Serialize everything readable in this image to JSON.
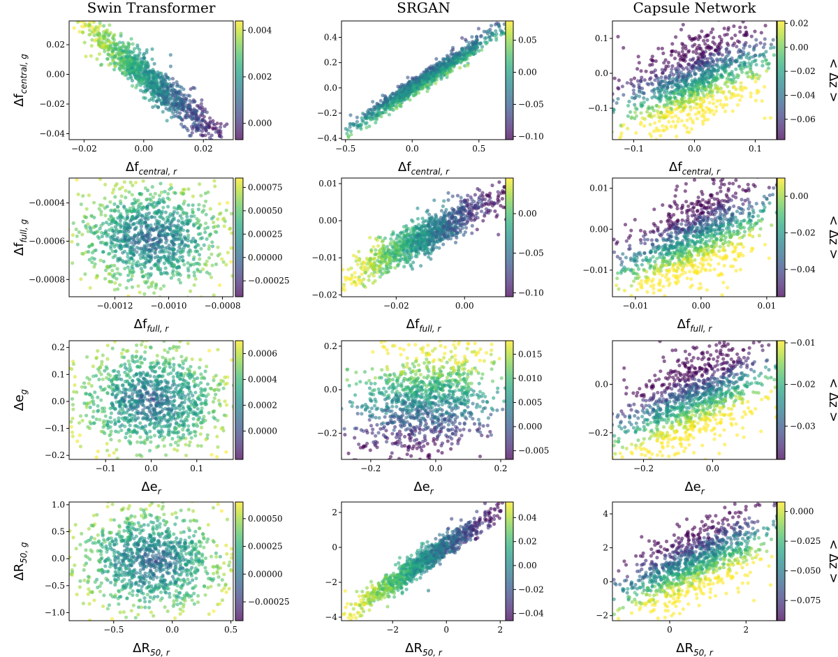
{
  "chart_data": [
    {
      "id": "swin-central",
      "type": "scatter",
      "title": "Swin Transformer",
      "xlabel": {
        "main": "Δf",
        "sub": "central, r"
      },
      "ylabel": {
        "main": "Δf",
        "sub": "central, g"
      },
      "xlim": [
        -0.025,
        0.03
      ],
      "ylim": [
        -0.044,
        0.036
      ],
      "xticks": [
        {
          "v": -0.02,
          "t": "−0.02"
        },
        {
          "v": 0,
          "t": "0.00"
        },
        {
          "v": 0.02,
          "t": "0.02"
        }
      ],
      "yticks": [
        {
          "v": -0.04,
          "t": "−0.04"
        },
        {
          "v": -0.02,
          "t": "−0.02"
        },
        {
          "v": 0,
          "t": "0.00"
        },
        {
          "v": 0.02,
          "t": "0.02"
        }
      ],
      "clim": [
        -0.0007,
        0.0044
      ],
      "cticks": [
        {
          "v": 0,
          "t": "0.000"
        },
        {
          "v": 0.002,
          "t": "0.002"
        },
        {
          "v": 0.004,
          "t": "0.004"
        }
      ],
      "zlabel": "",
      "pattern": {
        "slope": -1.15,
        "scatter": 0.15,
        "cshape": "linear-x"
      }
    },
    {
      "id": "srgan-central",
      "type": "scatter",
      "title": "SRGAN",
      "xlabel": {
        "main": "Δf",
        "sub": "central, r"
      },
      "ylabel": {
        "main": "",
        "sub": ""
      },
      "xlim": [
        -0.53,
        0.7
      ],
      "ylim": [
        -0.41,
        0.53
      ],
      "xticks": [
        {
          "v": -0.5,
          "t": "−0.5"
        },
        {
          "v": 0,
          "t": "0.0"
        },
        {
          "v": 0.5,
          "t": "0.5"
        }
      ],
      "yticks": [
        {
          "v": -0.4,
          "t": "−0.4"
        },
        {
          "v": -0.2,
          "t": "−0.2"
        },
        {
          "v": 0,
          "t": "0.0"
        },
        {
          "v": 0.2,
          "t": "0.2"
        },
        {
          "v": 0.4,
          "t": "0.4"
        }
      ],
      "clim": [
        -0.105,
        0.08
      ],
      "cticks": [
        {
          "v": -0.1,
          "t": "−0.10"
        },
        {
          "v": -0.05,
          "t": "−0.05"
        },
        {
          "v": 0,
          "t": "0.00"
        },
        {
          "v": 0.05,
          "t": "0.05"
        }
      ],
      "zlabel": "",
      "pattern": {
        "slope": 0.9,
        "scatter": 0.07,
        "cshape": "perp"
      }
    },
    {
      "id": "capsule-central",
      "type": "scatter",
      "title": "Capsule Network",
      "xlabel": {
        "main": "Δf",
        "sub": "central, r"
      },
      "ylabel": {
        "main": "",
        "sub": ""
      },
      "xlim": [
        -0.135,
        0.135
      ],
      "ylim": [
        -0.19,
        0.15
      ],
      "xticks": [
        {
          "v": -0.1,
          "t": "−0.1"
        },
        {
          "v": 0,
          "t": "0.0"
        },
        {
          "v": 0.1,
          "t": "0.1"
        }
      ],
      "yticks": [
        {
          "v": -0.1,
          "t": "−0.1"
        },
        {
          "v": 0,
          "t": "0.0"
        },
        {
          "v": 0.1,
          "t": "0.1"
        }
      ],
      "clim": [
        -0.077,
        0.022
      ],
      "cticks": [
        {
          "v": -0.06,
          "t": "−0.06"
        },
        {
          "v": -0.04,
          "t": "−0.04"
        },
        {
          "v": -0.02,
          "t": "−0.02"
        },
        {
          "v": 0,
          "t": "0.00"
        },
        {
          "v": 0.02,
          "t": "0.02"
        }
      ],
      "zlabel": "< Δz >",
      "pattern": {
        "slope": 0.5,
        "scatter": 0.35,
        "cshape": "perp"
      }
    },
    {
      "id": "swin-full",
      "type": "scatter",
      "title": "",
      "xlabel": {
        "main": "Δf",
        "sub": "full, r"
      },
      "ylabel": {
        "main": "Δf",
        "sub": "full, g"
      },
      "xlim": [
        -0.00137,
        -0.00076
      ],
      "ylim": [
        -0.00089,
        -0.00027
      ],
      "xticks": [
        {
          "v": -0.0012,
          "t": "−0.0012"
        },
        {
          "v": -0.001,
          "t": "−0.0010"
        },
        {
          "v": -0.0008,
          "t": "−0.0008"
        }
      ],
      "yticks": [
        {
          "v": -0.0008,
          "t": "−0.0008"
        },
        {
          "v": -0.0006,
          "t": "−0.0006"
        },
        {
          "v": -0.0004,
          "t": "−0.0004"
        }
      ],
      "clim": [
        -0.00042,
        0.00085
      ],
      "cticks": [
        {
          "v": -0.00025,
          "t": "−0.00025"
        },
        {
          "v": 0,
          "t": "0.00000"
        },
        {
          "v": 0.00025,
          "t": "0.00025"
        },
        {
          "v": 0.0005,
          "t": "0.00050"
        },
        {
          "v": 0.00075,
          "t": "0.00075"
        }
      ],
      "zlabel": "",
      "pattern": {
        "slope": 0,
        "scatter": 0.45,
        "cshape": "radial"
      }
    },
    {
      "id": "srgan-full",
      "type": "scatter",
      "title": "",
      "xlabel": {
        "main": "Δf",
        "sub": "full, r"
      },
      "ylabel": {
        "main": "",
        "sub": ""
      },
      "xlim": [
        -0.036,
        0.012
      ],
      "ylim": [
        -0.0205,
        0.0115
      ],
      "xticks": [
        {
          "v": -0.02,
          "t": "−0.02"
        },
        {
          "v": 0,
          "t": "0.00"
        }
      ],
      "yticks": [
        {
          "v": -0.02,
          "t": "−0.02"
        },
        {
          "v": -0.01,
          "t": "−0.01"
        },
        {
          "v": 0,
          "t": "0.00"
        },
        {
          "v": 0.01,
          "t": "0.01"
        }
      ],
      "clim": [
        -0.105,
        0.045
      ],
      "cticks": [
        {
          "v": -0.1,
          "t": "−0.10"
        },
        {
          "v": -0.05,
          "t": "−0.05"
        },
        {
          "v": 0,
          "t": "0.00"
        }
      ],
      "zlabel": "",
      "pattern": {
        "slope": 0.75,
        "scatter": 0.15,
        "cshape": "linear-x"
      }
    },
    {
      "id": "capsule-full",
      "type": "scatter",
      "title": "",
      "xlabel": {
        "main": "Δf",
        "sub": "full, r"
      },
      "ylabel": {
        "main": "",
        "sub": ""
      },
      "xlim": [
        -0.0135,
        0.0115
      ],
      "ylim": [
        -0.0165,
        0.0125
      ],
      "xticks": [
        {
          "v": -0.01,
          "t": "−0.01"
        },
        {
          "v": 0,
          "t": "0.00"
        },
        {
          "v": 0.01,
          "t": "0.01"
        }
      ],
      "yticks": [
        {
          "v": -0.01,
          "t": "−0.01"
        },
        {
          "v": 0,
          "t": "0.00"
        },
        {
          "v": 0.01,
          "t": "0.01"
        }
      ],
      "clim": [
        -0.055,
        0.01
      ],
      "cticks": [
        {
          "v": -0.04,
          "t": "−0.04"
        },
        {
          "v": -0.02,
          "t": "−0.02"
        },
        {
          "v": 0,
          "t": "0.00"
        }
      ],
      "zlabel": "< Δz >",
      "pattern": {
        "slope": 0.55,
        "scatter": 0.35,
        "cshape": "perp"
      }
    },
    {
      "id": "swin-e",
      "type": "scatter",
      "title": "",
      "xlabel": {
        "main": "Δe",
        "sub": "r"
      },
      "ylabel": {
        "main": "Δe",
        "sub": "g"
      },
      "xlim": [
        -0.18,
        0.18
      ],
      "ylim": [
        -0.215,
        0.225
      ],
      "xticks": [
        {
          "v": -0.1,
          "t": "−0.1"
        },
        {
          "v": 0,
          "t": "0.0"
        },
        {
          "v": 0.1,
          "t": "0.1"
        }
      ],
      "yticks": [
        {
          "v": -0.2,
          "t": "−0.2"
        },
        {
          "v": -0.1,
          "t": "−0.1"
        },
        {
          "v": 0,
          "t": "0.0"
        },
        {
          "v": 0.1,
          "t": "0.1"
        },
        {
          "v": 0.2,
          "t": "0.2"
        }
      ],
      "clim": [
        -0.00022,
        0.0007
      ],
      "cticks": [
        {
          "v": 0,
          "t": "0.0000"
        },
        {
          "v": 0.0002,
          "t": "0.0002"
        },
        {
          "v": 0.0004,
          "t": "0.0004"
        },
        {
          "v": 0.0006,
          "t": "0.0006"
        }
      ],
      "zlabel": "",
      "pattern": {
        "slope": 0,
        "scatter": 0.5,
        "cshape": "radial"
      }
    },
    {
      "id": "srgan-e",
      "type": "scatter",
      "title": "",
      "xlabel": {
        "main": "Δe",
        "sub": "r"
      },
      "ylabel": {
        "main": "",
        "sub": ""
      },
      "xlim": [
        -0.29,
        0.215
      ],
      "ylim": [
        -0.32,
        0.225
      ],
      "xticks": [
        {
          "v": -0.2,
          "t": "−0.2"
        },
        {
          "v": 0,
          "t": "0.0"
        },
        {
          "v": 0.2,
          "t": "0.2"
        }
      ],
      "yticks": [
        {
          "v": -0.2,
          "t": "−0.2"
        },
        {
          "v": 0,
          "t": "0.0"
        },
        {
          "v": 0.2,
          "t": "0.2"
        }
      ],
      "clim": [
        -0.0068,
        0.0178
      ],
      "cticks": [
        {
          "v": -0.005,
          "t": "−0.005"
        },
        {
          "v": 0,
          "t": "0.000"
        },
        {
          "v": 0.005,
          "t": "0.005"
        },
        {
          "v": 0.01,
          "t": "0.010"
        },
        {
          "v": 0.015,
          "t": "0.015"
        }
      ],
      "zlabel": "",
      "pattern": {
        "slope": 0.25,
        "scatter": 0.45,
        "cshape": "linear-y"
      }
    },
    {
      "id": "capsule-e",
      "type": "scatter",
      "title": "",
      "xlabel": {
        "main": "Δe",
        "sub": "r"
      },
      "ylabel": {
        "main": "",
        "sub": ""
      },
      "xlim": [
        -0.29,
        0.185
      ],
      "ylim": [
        -0.31,
        0.18
      ],
      "xticks": [
        {
          "v": -0.2,
          "t": "−0.2"
        },
        {
          "v": 0,
          "t": "0.0"
        }
      ],
      "yticks": [
        {
          "v": -0.2,
          "t": "−0.2"
        },
        {
          "v": 0,
          "t": "0.0"
        }
      ],
      "clim": [
        -0.038,
        -0.0095
      ],
      "cticks": [
        {
          "v": -0.03,
          "t": "−0.03"
        },
        {
          "v": -0.02,
          "t": "−0.02"
        },
        {
          "v": -0.01,
          "t": "−0.01"
        }
      ],
      "zlabel": "< Δz >",
      "pattern": {
        "slope": 0.55,
        "scatter": 0.35,
        "cshape": "perp"
      }
    },
    {
      "id": "swin-r50",
      "type": "scatter",
      "title": "",
      "xlabel": {
        "main": "ΔR",
        "sub": "50, r"
      },
      "ylabel": {
        "main": "ΔR",
        "sub": "50, g"
      },
      "xlim": [
        -0.88,
        0.52
      ],
      "ylim": [
        -1.15,
        1.05
      ],
      "xticks": [
        {
          "v": -0.5,
          "t": "−0.5"
        },
        {
          "v": 0,
          "t": "0.0"
        },
        {
          "v": 0.5,
          "t": "0.5"
        }
      ],
      "yticks": [
        {
          "v": -1.0,
          "t": "−1.0"
        },
        {
          "v": -0.5,
          "t": "−0.5"
        },
        {
          "v": 0,
          "t": "0.0"
        },
        {
          "v": 0.5,
          "t": "0.5"
        },
        {
          "v": 1.0,
          "t": "1.0"
        }
      ],
      "clim": [
        -0.00042,
        0.00065
      ],
      "cticks": [
        {
          "v": -0.00025,
          "t": "−0.00025"
        },
        {
          "v": 0,
          "t": "0.00000"
        },
        {
          "v": 0.00025,
          "t": "0.00025"
        },
        {
          "v": 0.0005,
          "t": "0.00050"
        }
      ],
      "zlabel": "",
      "pattern": {
        "slope": -0.1,
        "scatter": 0.4,
        "cshape": "radial"
      }
    },
    {
      "id": "srgan-r50",
      "type": "scatter",
      "title": "",
      "xlabel": {
        "main": "ΔR",
        "sub": "50, r"
      },
      "ylabel": {
        "main": "",
        "sub": ""
      },
      "xlim": [
        -3.9,
        2.2
      ],
      "ylim": [
        -4.2,
        2.6
      ],
      "xticks": [
        {
          "v": -2,
          "t": "−2"
        },
        {
          "v": 0,
          "t": "0"
        },
        {
          "v": 2,
          "t": "2"
        }
      ],
      "yticks": [
        {
          "v": -4,
          "t": "−4"
        },
        {
          "v": -2,
          "t": "−2"
        },
        {
          "v": 0,
          "t": "0"
        },
        {
          "v": 2,
          "t": "2"
        }
      ],
      "clim": [
        -0.046,
        0.053
      ],
      "cticks": [
        {
          "v": -0.04,
          "t": "−0.04"
        },
        {
          "v": -0.02,
          "t": "−0.02"
        },
        {
          "v": 0,
          "t": "0.00"
        },
        {
          "v": 0.02,
          "t": "0.02"
        },
        {
          "v": 0.04,
          "t": "0.04"
        }
      ],
      "zlabel": "",
      "pattern": {
        "slope": 0.95,
        "scatter": 0.1,
        "cshape": "linear-x"
      }
    },
    {
      "id": "capsule-r50",
      "type": "scatter",
      "title": "",
      "xlabel": {
        "main": "ΔR",
        "sub": "50, r"
      },
      "ylabel": {
        "main": "",
        "sub": ""
      },
      "xlim": [
        -1.5,
        2.8
      ],
      "ylim": [
        -2.3,
        4.7
      ],
      "xticks": [
        {
          "v": 0,
          "t": "0"
        },
        {
          "v": 2,
          "t": "2"
        }
      ],
      "yticks": [
        {
          "v": -2,
          "t": "−2"
        },
        {
          "v": 0,
          "t": "0"
        },
        {
          "v": 2,
          "t": "2"
        },
        {
          "v": 4,
          "t": "4"
        }
      ],
      "clim": [
        -0.092,
        0.008
      ],
      "cticks": [
        {
          "v": -0.075,
          "t": "−0.075"
        },
        {
          "v": -0.05,
          "t": "−0.050"
        },
        {
          "v": -0.025,
          "t": "−0.025"
        },
        {
          "v": 0,
          "t": "0.000"
        }
      ],
      "zlabel": "< Δz >",
      "pattern": {
        "slope": 0.6,
        "scatter": 0.3,
        "cshape": "perp"
      }
    }
  ]
}
